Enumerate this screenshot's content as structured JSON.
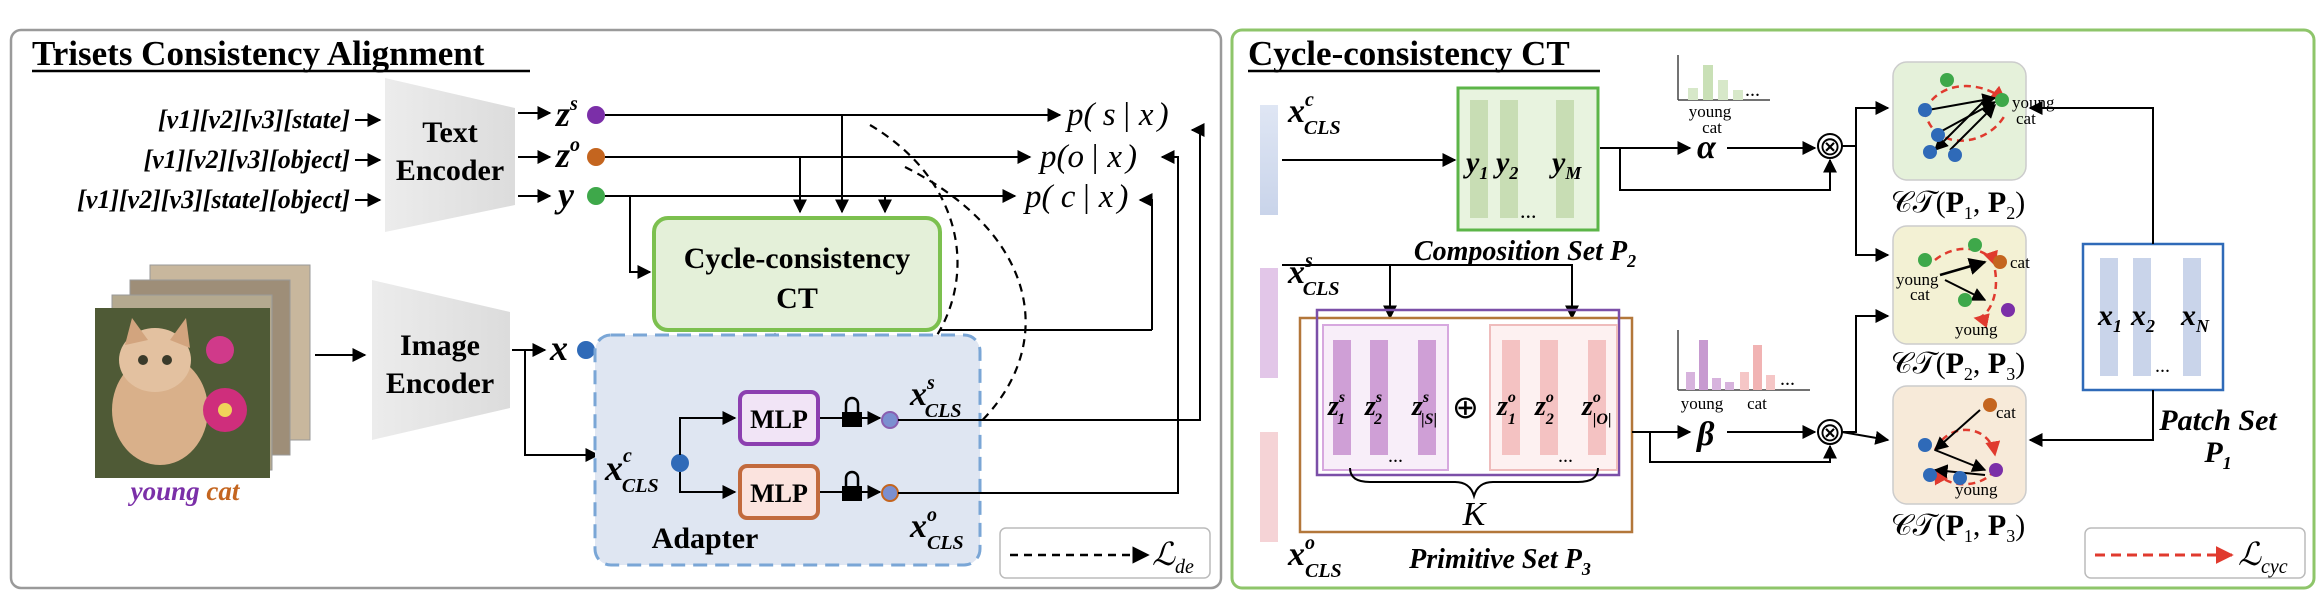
{
  "left_panel": {
    "title": "Trisets Consistency Alignment",
    "prompts": [
      "[v1][v2][v3][state]",
      "[v1][v2][v3][object]",
      "[v1][v2][v3][state][object]"
    ],
    "text_encoder": [
      "Text",
      "Encoder"
    ],
    "image_encoder": [
      "Image",
      "Encoder"
    ],
    "embeddings": {
      "zs": "z",
      "zs_sup": "s",
      "zo": "z",
      "zo_sup": "o",
      "y": "y",
      "x": "x"
    },
    "outputs": [
      {
        "p": "p(",
        "a": "s",
        "bar": "|",
        "b": "x",
        "close": ")"
      },
      {
        "p": "p(",
        "a": "o",
        "bar": "|",
        "b": "x",
        "close": ")"
      },
      {
        "p": "p(",
        "a": "c",
        "bar": "|",
        "b": "x",
        "close": ")"
      }
    ],
    "ct_box": [
      "Cycle-consistency",
      "CT"
    ],
    "adapter": {
      "label": "Adapter",
      "mlp1": "MLP",
      "mlp2": "MLP"
    },
    "x_cls": {
      "base": "x",
      "sup": "c",
      "sub": "CLS"
    },
    "x_cls_s": {
      "base": "x",
      "sup": "s",
      "sub": "CLS"
    },
    "x_cls_o": {
      "base": "x",
      "sup": "o",
      "sub": "CLS"
    },
    "image_caption": {
      "word1": "young",
      "word2": "cat"
    },
    "legend": {
      "L": "ℒ",
      "sub": "de"
    }
  },
  "right_panel": {
    "title": "Cycle-consistency CT",
    "x_cls_c": {
      "base": "x",
      "sup": "c",
      "sub": "CLS"
    },
    "x_cls_s": {
      "base": "x",
      "sup": "s",
      "sub": "CLS"
    },
    "x_cls_o": {
      "base": "x",
      "sup": "o",
      "sub": "CLS"
    },
    "composition": {
      "y1": "y",
      "y1_sub": "1",
      "y2": "y",
      "y2_sub": "2",
      "yM": "y",
      "yM_sub": "M",
      "dots": "...",
      "caption": "Composition Set P",
      "caption_sub": "2"
    },
    "primitive": {
      "z1s": "z",
      "z1s_sup": "s",
      "z1s_sub": "1",
      "z2s": "z",
      "z2s_sup": "s",
      "z2s_sub": "2",
      "zSs": "z",
      "zSs_sup": "s",
      "zSs_sub": "|S|",
      "oplus": "⊕",
      "z1o": "z",
      "z1o_sup": "o",
      "z1o_sub": "1",
      "z2o": "z",
      "z2o_sup": "o",
      "z2o_sub": "2",
      "zOo": "z",
      "zOo_sup": "o",
      "zOo_sub": "|O|",
      "dots": "...",
      "K": "K",
      "caption": "Primitive Set P",
      "caption_sub": "3"
    },
    "alpha": "α",
    "beta": "β",
    "otimes": "⊗",
    "hist1": {
      "label1": "young",
      "label2": "cat",
      "dots": "..."
    },
    "hist2": {
      "label1": "young",
      "label2": "cat",
      "dots": "..."
    },
    "ct_labels": [
      {
        "pre": "𝒞𝒯(",
        "a": "P",
        "a_sub": "1",
        "b": "P",
        "b_sub": "2",
        "post": ")"
      },
      {
        "pre": "𝒞𝒯(",
        "a": "P",
        "a_sub": "2",
        "b": "P",
        "b_sub": "3",
        "post": ")"
      },
      {
        "pre": "𝒞𝒯(",
        "a": "P",
        "a_sub": "1",
        "b": "P",
        "b_sub": "3",
        "post": ")"
      }
    ],
    "ct_node_labels": [
      [
        "young",
        "cat"
      ],
      [
        "young",
        "cat",
        "cat",
        "young"
      ],
      [
        "cat",
        "young"
      ]
    ],
    "patch": {
      "x1": "x",
      "x1_sub": "1",
      "x2": "x",
      "x2_sub": "2",
      "xN": "x",
      "xN_sub": "N",
      "dots": "...",
      "caption1": "Patch Set",
      "caption2": "P",
      "caption2_sub": "1"
    },
    "legend": {
      "L": "ℒ",
      "sub": "cyc"
    }
  },
  "colors": {
    "panel_border": "#9a9a9a",
    "right_border": "#8ec56a",
    "ct_fill": "#e4f0d9",
    "ct_border": "#7cc04f",
    "adapter_fill": "#dfe6f2",
    "adapter_border": "#7aa6d6",
    "mlp1_fill": "#f1e4f6",
    "mlp1_border": "#8c3fb0",
    "mlp2_fill": "#fbe3de",
    "mlp2_border": "#c26a3d",
    "purple": "#7b2fa8",
    "orange": "#c4651f",
    "green": "#3ea84a",
    "blue": "#2f6ab8",
    "red_dash": "#e03a2e"
  }
}
